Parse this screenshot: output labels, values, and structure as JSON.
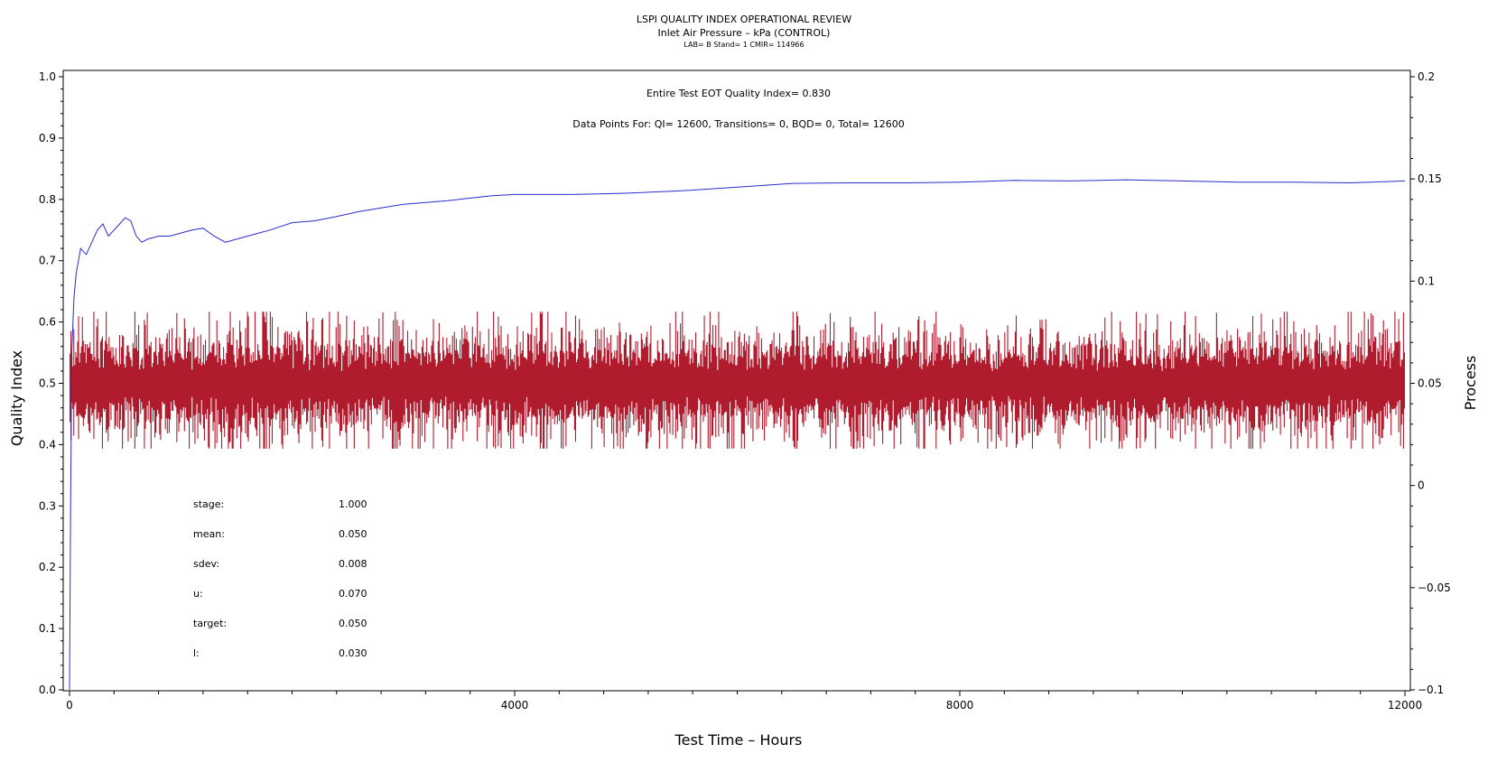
{
  "chart_data": {
    "type": "line",
    "title": "LSPI QUALITY INDEX OPERATIONAL REVIEW",
    "subtitle": "Inlet Air Pressure – kPa (CONTROL)",
    "subtitle2": "LAB= B Stand= 1 CMIR= 114966",
    "annotation1": "Entire Test EOT Quality Index=   0.830",
    "annotation2": "Data Points For: QI= 12600, Transitions=     0, BQD=     0, Total= 12600",
    "xlabel": "Test Time – Hours",
    "ylabel_left": "Quality Index",
    "ylabel_right": "Process",
    "xlim": [
      0,
      12000
    ],
    "ylim_left": [
      0,
      1
    ],
    "ylim_right": [
      -0.1,
      0.2
    ],
    "xticks": [
      0,
      4000,
      8000,
      12000
    ],
    "yticks_left": [
      0.0,
      0.1,
      0.2,
      0.3,
      0.4,
      0.5,
      0.6,
      0.7,
      0.8,
      0.9,
      1.0
    ],
    "yticks_right": [
      -0.1,
      -0.05,
      0,
      0.05,
      0.1,
      0.15,
      0.2
    ],
    "yticks_right_labels": [
      "−0.1",
      "−0.05",
      "0",
      "0.05",
      "0.1",
      "0.15",
      "0.2"
    ],
    "grid": false,
    "colors": {
      "quality_index": "#2b2bd0",
      "process": "#b01c2e"
    },
    "series": [
      {
        "axis": "left",
        "x": [
          0,
          10,
          20,
          40,
          60,
          80,
          100,
          150,
          200,
          250,
          300,
          350,
          400,
          450,
          500,
          550,
          600,
          650,
          700,
          800,
          900,
          1000,
          1100,
          1200,
          1300,
          1400,
          1500,
          1600,
          1700,
          1800,
          2000,
          2200,
          2400,
          2600,
          2800,
          3000,
          3200,
          3400,
          3600,
          3800,
          4000,
          4500,
          5000,
          5500,
          6000,
          6500,
          7000,
          7500,
          8000,
          8500,
          9000,
          9500,
          10000,
          10500,
          11000,
          11500,
          12000
        ],
        "values": [
          0.0,
          0.3,
          0.55,
          0.64,
          0.68,
          0.7,
          0.72,
          0.71,
          0.73,
          0.75,
          0.76,
          0.74,
          0.75,
          0.76,
          0.77,
          0.765,
          0.74,
          0.73,
          0.735,
          0.74,
          0.74,
          0.745,
          0.75,
          0.753,
          0.74,
          0.73,
          0.735,
          0.74,
          0.745,
          0.75,
          0.762,
          0.765,
          0.772,
          0.78,
          0.786,
          0.792,
          0.795,
          0.798,
          0.802,
          0.806,
          0.808,
          0.808,
          0.81,
          0.814,
          0.82,
          0.826,
          0.827,
          0.827,
          0.828,
          0.831,
          0.83,
          0.832,
          0.83,
          0.828,
          0.828,
          0.827,
          0.83
        ]
      },
      {
        "axis": "right",
        "mean": 0.05,
        "sdev": 0.008,
        "min": 0.018,
        "max": 0.085,
        "points": 12600
      }
    ],
    "stats": [
      {
        "label": "stage:",
        "value": "1.000"
      },
      {
        "label": "mean:",
        "value": "0.050"
      },
      {
        "label": "sdev:",
        "value": "0.008"
      },
      {
        "label": "u:",
        "value": "0.070"
      },
      {
        "label": "target:",
        "value": "0.050"
      },
      {
        "label": "l:",
        "value": "0.030"
      }
    ]
  }
}
